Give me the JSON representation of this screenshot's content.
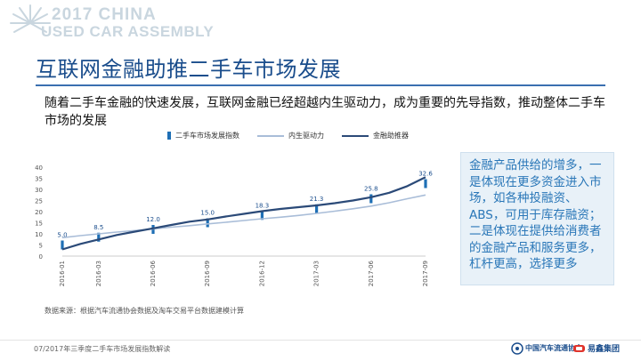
{
  "header": {
    "logo_line1": "2017 CHINA",
    "logo_line2": "USED CAR ASSEMBLY"
  },
  "page_title": "互联网金融助推二手车市场发展",
  "subtitle": "随着二手车金融的快速发展，互联网金融已经超越内生驱动力，成为重要的先导指数，推动整体二手车市场的发展",
  "legend": {
    "bar": "二手车市场发展指数",
    "line1": "内生驱动力",
    "line2": "金融助推器"
  },
  "callout": "金融产品供给的增多，一是体现在更多资金进入市场，如各种投融资、ABS，可用于库存融资；二是体现在提供给消费者的金融产品和服务更多，杠杆更高，选择更多",
  "source": "数据来源：根据汽车流通协会数据及淘车交易平台数据建模计算",
  "footer": {
    "page_text": "07/2017年三季度二手车市场发展指数解读",
    "org1": "中国汽车流通协会",
    "org2": "易鑫集团"
  },
  "colors": {
    "title": "#1a4d8c",
    "bar": "#1e6fb5",
    "line_internal": "#a9bdd8",
    "line_finance": "#2b4a78",
    "callout_text": "#2a77b8",
    "callout_bg": "#e8f1f8"
  },
  "chart_data": {
    "type": "line",
    "ylim": [
      0,
      40
    ],
    "yticks": [
      0,
      5,
      10,
      15,
      20,
      25,
      30,
      35,
      40
    ],
    "x_labels": [
      "2016-01",
      "2016-03",
      "2016-06",
      "2016-09",
      "2016-12",
      "2017-03",
      "2017-06",
      "2017-09"
    ],
    "months": [
      "2016-01",
      "2016-02",
      "2016-03",
      "2016-04",
      "2016-05",
      "2016-06",
      "2016-07",
      "2016-08",
      "2016-09",
      "2016-10",
      "2016-11",
      "2016-12",
      "2017-01",
      "2017-02",
      "2017-03",
      "2017-04",
      "2017-05",
      "2017-06",
      "2017-07",
      "2017-08",
      "2017-09"
    ],
    "bars": {
      "name": "二手车市场发展指数",
      "points": [
        {
          "x": "2016-01",
          "value": 5.0,
          "label": "5.0"
        },
        {
          "x": "2016-03",
          "value": 8.5,
          "label": "8.5"
        },
        {
          "x": "2016-06",
          "value": 12.0,
          "label": "12.0"
        },
        {
          "x": "2016-09",
          "value": 15.0,
          "label": "15.0"
        },
        {
          "x": "2016-12",
          "value": 18.3,
          "label": "18.3"
        },
        {
          "x": "2017-03",
          "value": 21.3,
          "label": "21.3"
        },
        {
          "x": "2017-06",
          "value": 25.8,
          "label": "25.8"
        },
        {
          "x": "2017-09",
          "value": 32.6,
          "label": "32.6"
        }
      ]
    },
    "series": [
      {
        "name": "内生驱动力",
        "values": [
          8.3,
          9.2,
          10.0,
          10.8,
          11.5,
          12.2,
          13.0,
          13.7,
          14.5,
          15.2,
          16.0,
          16.8,
          17.5,
          18.3,
          19.2,
          20.2,
          21.3,
          22.5,
          24.0,
          25.8,
          27.5
        ]
      },
      {
        "name": "金融助推器",
        "values": [
          3.0,
          5.5,
          7.5,
          9.5,
          11.0,
          12.5,
          14.0,
          15.5,
          16.5,
          17.8,
          19.0,
          20.2,
          21.2,
          22.0,
          22.8,
          23.8,
          25.0,
          26.5,
          28.5,
          31.5,
          35.5
        ]
      }
    ]
  }
}
